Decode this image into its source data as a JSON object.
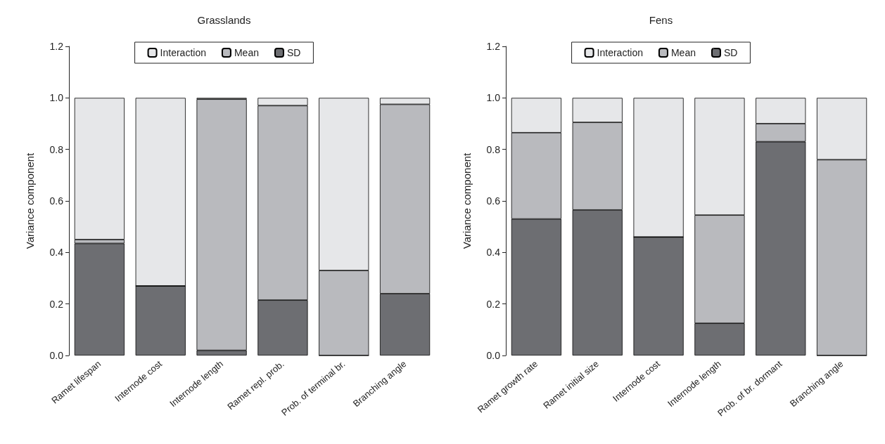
{
  "chart_data": [
    {
      "type": "bar",
      "title": "Grasslands",
      "ylabel": "Variance component",
      "stacked": true,
      "legend": "top",
      "grid": false,
      "ylim": [
        0,
        1.2
      ],
      "yticks": [
        {
          "value": 0,
          "label": "0.0"
        },
        {
          "value": 0.2,
          "label": "0.2"
        },
        {
          "value": 0.4,
          "label": "0.4"
        },
        {
          "value": 0.6,
          "label": "0.6"
        },
        {
          "value": 0.8,
          "label": "0.8"
        },
        {
          "value": 1,
          "label": "1.0"
        },
        {
          "value": 1.2,
          "label": "1.2"
        }
      ],
      "categories": [
        "Ramet lifespan",
        "Internode cost",
        "Internode length",
        "Ramet repl. prob.",
        "Prob. of terminal br.",
        "Branching angle"
      ],
      "series": [
        {
          "name": "SD",
          "color": "#6d6e72",
          "values": [
            0.435,
            0.27,
            0.02,
            0.215,
            0,
            0.24
          ]
        },
        {
          "name": "Mean",
          "color": "#b9babe",
          "values": [
            0.015,
            0,
            0.975,
            0.755,
            0.33,
            0.735
          ]
        },
        {
          "name": "Interaction",
          "color": "#e6e7e9",
          "values": [
            0.55,
            0.73,
            0.005,
            0.03,
            0.67,
            0.025
          ]
        }
      ]
    },
    {
      "type": "bar",
      "title": "Fens",
      "ylabel": "Variance component",
      "stacked": true,
      "legend": "top",
      "grid": false,
      "ylim": [
        0,
        1.2
      ],
      "yticks": [
        {
          "value": 0,
          "label": "0.0"
        },
        {
          "value": 0.2,
          "label": "0.2"
        },
        {
          "value": 0.4,
          "label": "0.4"
        },
        {
          "value": 0.6,
          "label": "0.6"
        },
        {
          "value": 0.8,
          "label": "0.8"
        },
        {
          "value": 1,
          "label": "1.0"
        },
        {
          "value": 1.2,
          "label": "1.2"
        }
      ],
      "categories": [
        "Ramet growth rate",
        "Ramet initial size",
        "Internode cost",
        "Internode length",
        "Prob. of br. dormant",
        "Branching angle"
      ],
      "series": [
        {
          "name": "SD",
          "color": "#6d6e72",
          "values": [
            0.53,
            0.565,
            0.46,
            0.125,
            0.83,
            0
          ]
        },
        {
          "name": "Mean",
          "color": "#b9babe",
          "values": [
            0.335,
            0.34,
            0,
            0.42,
            0.07,
            0.76
          ]
        },
        {
          "name": "Interaction",
          "color": "#e6e7e9",
          "values": [
            0.135,
            0.095,
            0.54,
            0.455,
            0.1,
            0.24
          ]
        }
      ]
    }
  ]
}
